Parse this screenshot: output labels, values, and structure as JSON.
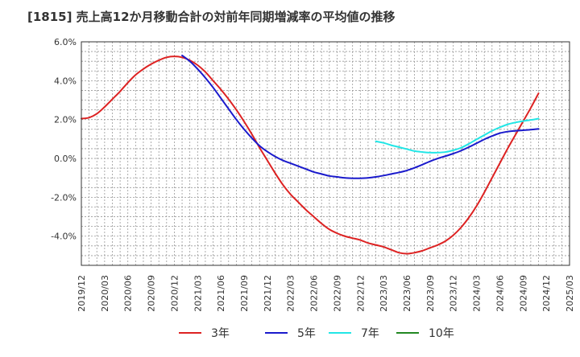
{
  "chart_data": {
    "type": "line",
    "title": "[1815]  売上高12か月移動合計の対前年同期増減率の平均値の推移",
    "xlabel": "",
    "ylabel": "",
    "y_unit": "%",
    "ylim": [
      -5.5,
      6.0
    ],
    "yticks": [
      6.0,
      4.0,
      2.0,
      0.0,
      -2.0,
      -4.0
    ],
    "ytick_labels": [
      "6.0%",
      "4.0%",
      "2.0%",
      "0.0%",
      "-2.0%",
      "-4.0%"
    ],
    "xlim": [
      "2019/12",
      "2025/03"
    ],
    "xtick_labels": [
      "2019/12",
      "2020/03",
      "2020/06",
      "2020/09",
      "2020/12",
      "2021/03",
      "2021/06",
      "2021/09",
      "2021/12",
      "2022/03",
      "2022/06",
      "2022/09",
      "2022/12",
      "2023/03",
      "2023/06",
      "2023/09",
      "2023/12",
      "2024/03",
      "2024/06",
      "2024/09",
      "2024/12",
      "2025/03"
    ],
    "grid": true,
    "legend_position": "bottom",
    "series": [
      {
        "name": "3年",
        "color": "#dd2222",
        "points": [
          [
            "2019/12",
            2.05
          ],
          [
            "2020/01",
            2.1
          ],
          [
            "2020/02",
            2.3
          ],
          [
            "2020/03",
            2.65
          ],
          [
            "2020/04",
            3.05
          ],
          [
            "2020/05",
            3.45
          ],
          [
            "2020/06",
            3.9
          ],
          [
            "2020/07",
            4.3
          ],
          [
            "2020/08",
            4.6
          ],
          [
            "2020/09",
            4.85
          ],
          [
            "2020/10",
            5.05
          ],
          [
            "2020/11",
            5.2
          ],
          [
            "2020/12",
            5.25
          ],
          [
            "2021/01",
            5.2
          ],
          [
            "2021/02",
            5.05
          ],
          [
            "2021/03",
            4.8
          ],
          [
            "2021/04",
            4.45
          ],
          [
            "2021/05",
            4.0
          ],
          [
            "2021/06",
            3.55
          ],
          [
            "2021/07",
            3.05
          ],
          [
            "2021/08",
            2.5
          ],
          [
            "2021/09",
            1.9
          ],
          [
            "2021/10",
            1.25
          ],
          [
            "2021/11",
            0.55
          ],
          [
            "2021/12",
            -0.1
          ],
          [
            "2022/01",
            -0.75
          ],
          [
            "2022/02",
            -1.35
          ],
          [
            "2022/03",
            -1.85
          ],
          [
            "2022/04",
            -2.25
          ],
          [
            "2022/05",
            -2.65
          ],
          [
            "2022/06",
            -3.0
          ],
          [
            "2022/07",
            -3.35
          ],
          [
            "2022/08",
            -3.65
          ],
          [
            "2022/09",
            -3.85
          ],
          [
            "2022/10",
            -4.0
          ],
          [
            "2022/11",
            -4.1
          ],
          [
            "2022/12",
            -4.2
          ],
          [
            "2023/01",
            -4.35
          ],
          [
            "2023/02",
            -4.45
          ],
          [
            "2023/03",
            -4.55
          ],
          [
            "2023/04",
            -4.7
          ],
          [
            "2023/05",
            -4.85
          ],
          [
            "2023/06",
            -4.9
          ],
          [
            "2023/07",
            -4.85
          ],
          [
            "2023/08",
            -4.75
          ],
          [
            "2023/09",
            -4.6
          ],
          [
            "2023/10",
            -4.45
          ],
          [
            "2023/11",
            -4.25
          ],
          [
            "2023/12",
            -3.95
          ],
          [
            "2024/01",
            -3.55
          ],
          [
            "2024/02",
            -3.05
          ],
          [
            "2024/03",
            -2.45
          ],
          [
            "2024/04",
            -1.75
          ],
          [
            "2024/05",
            -1.0
          ],
          [
            "2024/06",
            -0.25
          ],
          [
            "2024/07",
            0.5
          ],
          [
            "2024/08",
            1.2
          ],
          [
            "2024/09",
            1.9
          ],
          [
            "2024/10",
            2.6
          ],
          [
            "2024/11",
            3.35
          ]
        ]
      },
      {
        "name": "5年",
        "color": "#1a1acc",
        "points": [
          [
            "2021/01",
            5.3
          ],
          [
            "2021/02",
            5.0
          ],
          [
            "2021/03",
            4.6
          ],
          [
            "2021/04",
            4.15
          ],
          [
            "2021/05",
            3.65
          ],
          [
            "2021/06",
            3.1
          ],
          [
            "2021/07",
            2.55
          ],
          [
            "2021/08",
            2.0
          ],
          [
            "2021/09",
            1.5
          ],
          [
            "2021/10",
            1.05
          ],
          [
            "2021/11",
            0.65
          ],
          [
            "2021/12",
            0.35
          ],
          [
            "2022/01",
            0.1
          ],
          [
            "2022/02",
            -0.1
          ],
          [
            "2022/03",
            -0.25
          ],
          [
            "2022/04",
            -0.4
          ],
          [
            "2022/05",
            -0.55
          ],
          [
            "2022/06",
            -0.7
          ],
          [
            "2022/07",
            -0.8
          ],
          [
            "2022/08",
            -0.9
          ],
          [
            "2022/09",
            -0.95
          ],
          [
            "2022/10",
            -1.0
          ],
          [
            "2022/11",
            -1.02
          ],
          [
            "2022/12",
            -1.02
          ],
          [
            "2023/01",
            -1.0
          ],
          [
            "2023/02",
            -0.95
          ],
          [
            "2023/03",
            -0.88
          ],
          [
            "2023/04",
            -0.8
          ],
          [
            "2023/05",
            -0.72
          ],
          [
            "2023/06",
            -0.62
          ],
          [
            "2023/07",
            -0.48
          ],
          [
            "2023/08",
            -0.32
          ],
          [
            "2023/09",
            -0.15
          ],
          [
            "2023/10",
            0.0
          ],
          [
            "2023/11",
            0.12
          ],
          [
            "2023/12",
            0.25
          ],
          [
            "2024/01",
            0.4
          ],
          [
            "2024/02",
            0.58
          ],
          [
            "2024/03",
            0.78
          ],
          [
            "2024/04",
            0.98
          ],
          [
            "2024/05",
            1.15
          ],
          [
            "2024/06",
            1.3
          ],
          [
            "2024/07",
            1.38
          ],
          [
            "2024/08",
            1.42
          ],
          [
            "2024/09",
            1.45
          ],
          [
            "2024/10",
            1.48
          ],
          [
            "2024/11",
            1.52
          ]
        ]
      },
      {
        "name": "7年",
        "color": "#22e6e6",
        "points": [
          [
            "2023/02",
            0.88
          ],
          [
            "2023/03",
            0.8
          ],
          [
            "2023/04",
            0.68
          ],
          [
            "2023/05",
            0.58
          ],
          [
            "2023/06",
            0.48
          ],
          [
            "2023/07",
            0.38
          ],
          [
            "2023/08",
            0.33
          ],
          [
            "2023/09",
            0.3
          ],
          [
            "2023/10",
            0.3
          ],
          [
            "2023/11",
            0.33
          ],
          [
            "2023/12",
            0.42
          ],
          [
            "2024/01",
            0.55
          ],
          [
            "2024/02",
            0.75
          ],
          [
            "2024/03",
            0.98
          ],
          [
            "2024/04",
            1.2
          ],
          [
            "2024/05",
            1.42
          ],
          [
            "2024/06",
            1.6
          ],
          [
            "2024/07",
            1.75
          ],
          [
            "2024/08",
            1.85
          ],
          [
            "2024/09",
            1.92
          ],
          [
            "2024/10",
            1.98
          ],
          [
            "2024/11",
            2.05
          ]
        ]
      },
      {
        "name": "10年",
        "color": "#228822",
        "points": []
      }
    ]
  }
}
